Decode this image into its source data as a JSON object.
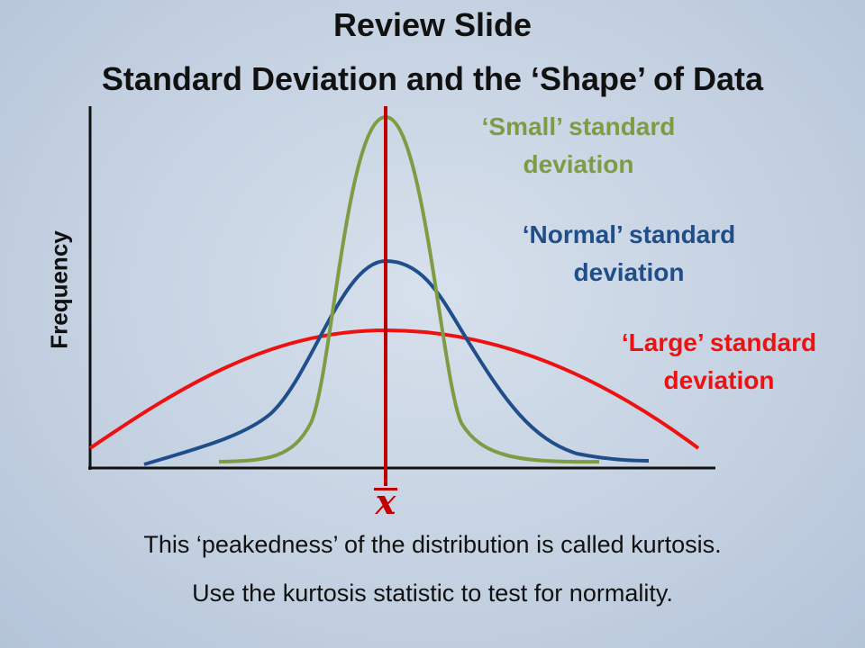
{
  "slide": {
    "title_line1": "Review Slide",
    "title_line2": "Standard Deviation and the ‘Shape’ of Data",
    "y_axis_label": "Frequency",
    "mean_symbol": "x",
    "caption_line1": "This ‘peakedness’ of the distribution is called kurtosis.",
    "caption_line2": "Use the kurtosis statistic to test for normality."
  },
  "curves": [
    {
      "id": "small",
      "label_line1": "‘Small’ standard",
      "label_line2": "deviation",
      "color": "#7f9c44"
    },
    {
      "id": "normal",
      "label_line1": "‘Normal’ standard",
      "label_line2": "deviation",
      "color": "#1f4e8a"
    },
    {
      "id": "large",
      "label_line1": "‘Large’ standard",
      "label_line2": "deviation",
      "color": "#ee1111"
    }
  ],
  "colors": {
    "mean_line": "#c00000",
    "axis": "#111111",
    "title": "#111111"
  }
}
